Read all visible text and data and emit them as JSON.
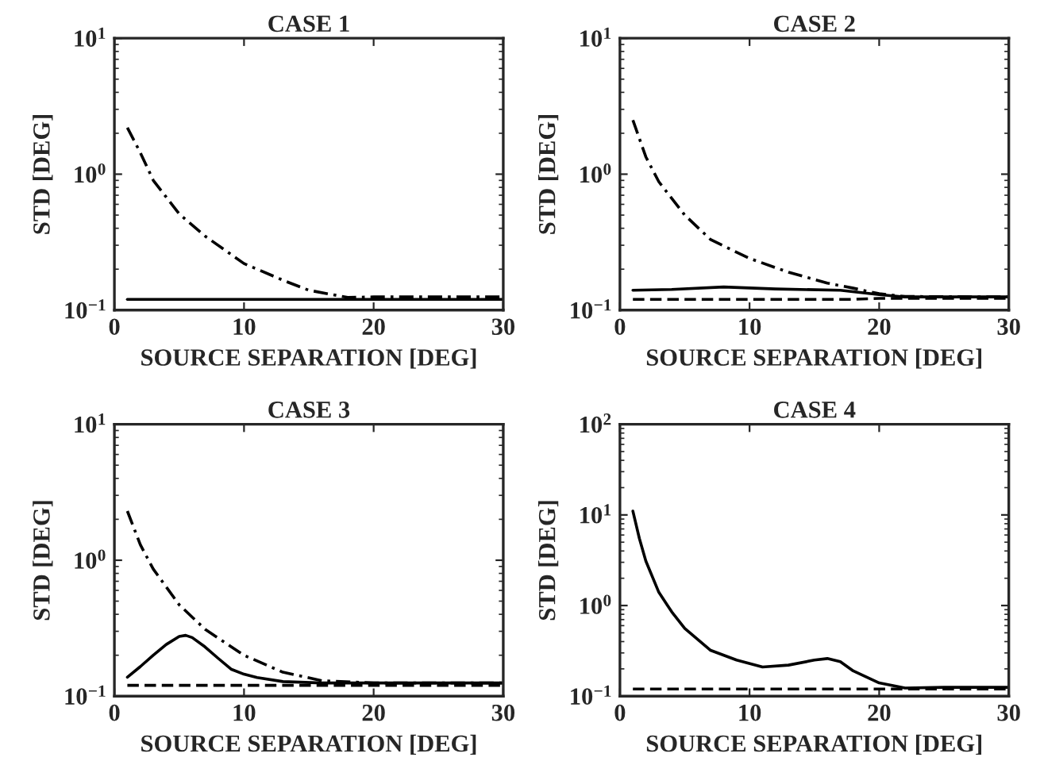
{
  "chart_data": [
    {
      "type": "line",
      "title": "CASE 1",
      "xlabel": "SOURCE SEPARATION [DEG]",
      "ylabel": "STD [DEG]",
      "log": "y",
      "xlim": [
        0,
        30
      ],
      "xticks": [
        0,
        10,
        20,
        30
      ],
      "ylim": [
        0.1,
        10
      ],
      "yticks": [
        {
          "value": 0.1,
          "label": "10$^{−1}$"
        },
        {
          "value": 1,
          "label": "10$^{0}$"
        },
        {
          "value": 10,
          "label": "10$^{1}$"
        }
      ],
      "grid": false,
      "legend": false,
      "series": [
        {
          "color": "#000000",
          "line_style": "solid",
          "x": [
            1,
            30
          ],
          "values": [
            0.12,
            0.12
          ]
        },
        {
          "color": "#000000",
          "line_style": "dotted",
          "x": [
            1,
            2,
            3,
            5,
            7,
            10,
            13,
            15,
            18,
            20,
            25,
            30
          ],
          "values": [
            2.2,
            1.44,
            0.9,
            0.51,
            0.35,
            0.22,
            0.166,
            0.14,
            0.124,
            0.125,
            0.125,
            0.125
          ]
        }
      ]
    },
    {
      "type": "line",
      "title": "CASE 2",
      "xlabel": "SOURCE SEPARATION [DEG]",
      "ylabel": "STD [DEG]",
      "log": "y",
      "xlim": [
        0,
        30
      ],
      "xticks": [
        0,
        10,
        20,
        30
      ],
      "ylim": [
        0.1,
        10
      ],
      "yticks": [
        {
          "value": 0.1,
          "label": "10$^{−1}$"
        },
        {
          "value": 1,
          "label": "10$^{0}$"
        },
        {
          "value": 10,
          "label": "10$^{1}$"
        }
      ],
      "grid": false,
      "legend": false,
      "series": [
        {
          "color": "#000000",
          "line_style": "solid",
          "x": [
            1,
            4,
            8,
            12,
            17,
            20,
            22,
            30
          ],
          "values": [
            0.14,
            0.142,
            0.148,
            0.143,
            0.14,
            0.13,
            0.125,
            0.125
          ]
        },
        {
          "color": "#000000",
          "line_style": "dashed",
          "x": [
            1,
            18,
            20,
            30
          ],
          "values": [
            0.12,
            0.12,
            0.122,
            0.122
          ]
        },
        {
          "color": "#000000",
          "line_style": "dotted",
          "x": [
            1,
            2,
            3,
            5,
            7,
            10,
            13,
            16,
            18,
            20,
            22,
            30
          ],
          "values": [
            2.5,
            1.34,
            0.88,
            0.5,
            0.33,
            0.24,
            0.19,
            0.158,
            0.145,
            0.132,
            0.126,
            0.125
          ]
        }
      ]
    },
    {
      "type": "line",
      "title": "CASE 3",
      "xlabel": "SOURCE SEPARATION [DEG]",
      "ylabel": "STD [DEG]",
      "log": "y",
      "xlim": [
        0,
        30
      ],
      "xticks": [
        0,
        10,
        20,
        30
      ],
      "ylim": [
        0.1,
        10
      ],
      "yticks": [
        {
          "value": 0.1,
          "label": "10$^{−1}$"
        },
        {
          "value": 1,
          "label": "10$^{0}$"
        },
        {
          "value": 10,
          "label": "10$^{1}$"
        }
      ],
      "grid": false,
      "legend": false,
      "series": [
        {
          "color": "#000000",
          "line_style": "solid",
          "x": [
            1,
            2,
            3,
            4,
            5,
            5.5,
            6,
            7,
            8,
            9,
            10,
            11,
            13,
            16,
            30
          ],
          "values": [
            0.138,
            0.165,
            0.2,
            0.24,
            0.275,
            0.28,
            0.27,
            0.23,
            0.19,
            0.158,
            0.145,
            0.137,
            0.128,
            0.125,
            0.125
          ]
        },
        {
          "color": "#000000",
          "line_style": "dashed",
          "x": [
            1,
            30
          ],
          "values": [
            0.12,
            0.12
          ]
        },
        {
          "color": "#000000",
          "line_style": "dotted",
          "x": [
            1,
            2,
            3,
            5,
            7,
            10,
            13,
            16,
            20,
            30
          ],
          "values": [
            2.3,
            1.3,
            0.86,
            0.47,
            0.31,
            0.2,
            0.15,
            0.13,
            0.125,
            0.125
          ]
        }
      ]
    },
    {
      "type": "line",
      "title": "CASE 4",
      "xlabel": "SOURCE SEPARATION [DEG]",
      "ylabel": "STD [DEG]",
      "log": "y",
      "xlim": [
        0,
        30
      ],
      "xticks": [
        0,
        10,
        20,
        30
      ],
      "ylim": [
        0.1,
        100
      ],
      "yticks": [
        {
          "value": 0.1,
          "label": "10$^{−1}$"
        },
        {
          "value": 1,
          "label": "10$^{0}$"
        },
        {
          "value": 10,
          "label": "10$^{1}$"
        },
        {
          "value": 100,
          "label": "10$^{2}$"
        }
      ],
      "grid": false,
      "legend": false,
      "series": [
        {
          "color": "#000000",
          "line_style": "solid",
          "x": [
            1,
            1.5,
            2,
            3,
            4,
            5,
            7,
            9,
            11,
            13,
            15,
            16,
            17,
            18,
            20,
            22,
            25,
            30
          ],
          "values": [
            11,
            5.5,
            3.1,
            1.4,
            0.85,
            0.56,
            0.32,
            0.25,
            0.21,
            0.22,
            0.25,
            0.26,
            0.24,
            0.19,
            0.14,
            0.123,
            0.125,
            0.125
          ]
        },
        {
          "color": "#000000",
          "line_style": "dashed",
          "x": [
            1,
            30
          ],
          "values": [
            0.12,
            0.12
          ]
        }
      ]
    }
  ]
}
